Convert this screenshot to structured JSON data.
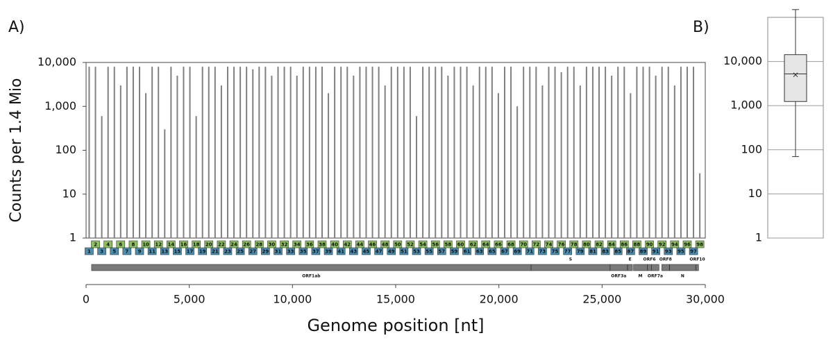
{
  "chart_data": [
    {
      "type": "coverage",
      "title": "A)",
      "x_label": "Genome position [nt]",
      "y_label": "Counts per 1.4 Mio",
      "log_scale": true,
      "xlim": [
        0,
        30000
      ],
      "ylim": [
        1,
        10000
      ],
      "xticks": [
        0,
        {
          "value": 5000,
          "label": "5,000"
        },
        {
          "value": 10000,
          "label": "10,000"
        },
        {
          "value": 15000,
          "label": "15,000"
        },
        {
          "value": 20000,
          "label": "20,000"
        },
        {
          "value": 25000,
          "label": "25,000"
        },
        {
          "value": 30000,
          "label": "30,000"
        }
      ],
      "yticks": [
        1,
        10,
        100,
        {
          "value": 1000,
          "label": "1,000"
        },
        {
          "value": 10000,
          "label": "10,000"
        }
      ],
      "color": "#808080",
      "odd_color": "#4a8fb0",
      "even_color": "#8dc063",
      "amplicons": [
        1,
        2,
        3,
        4,
        5,
        6,
        7,
        8,
        9,
        10,
        11,
        12,
        13,
        14,
        15,
        16,
        17,
        18,
        19,
        20,
        21,
        22,
        23,
        24,
        25,
        26,
        27,
        28,
        29,
        30,
        31,
        32,
        33,
        34,
        35,
        36,
        37,
        38,
        39,
        40,
        41,
        42,
        43,
        44,
        45,
        46,
        47,
        48,
        49,
        50,
        51,
        52,
        53,
        54,
        55,
        56,
        57,
        58,
        59,
        60,
        61,
        62,
        63,
        64,
        65,
        66,
        67,
        68,
        69,
        70,
        71,
        72,
        73,
        74,
        75,
        76,
        77,
        78,
        79,
        80,
        81,
        82,
        83,
        84,
        85,
        86,
        87,
        88,
        89,
        90,
        91,
        92,
        93,
        94,
        95,
        96,
        97,
        98
      ],
      "x": [
        150,
        455,
        760,
        1065,
        1370,
        1675,
        1980,
        2285,
        2590,
        2895,
        3200,
        3505,
        3810,
        4115,
        4420,
        4725,
        5030,
        5335,
        5640,
        5945,
        6250,
        6555,
        6860,
        7165,
        7470,
        7775,
        8080,
        8385,
        8690,
        8995,
        9300,
        9605,
        9910,
        10215,
        10520,
        10825,
        11130,
        11435,
        11740,
        12045,
        12350,
        12655,
        12960,
        13265,
        13570,
        13875,
        14180,
        14485,
        14790,
        15095,
        15400,
        15705,
        16010,
        16315,
        16620,
        16925,
        17230,
        17535,
        17840,
        18145,
        18450,
        18755,
        19060,
        19365,
        19670,
        19975,
        20280,
        20585,
        20890,
        21195,
        21500,
        21805,
        22110,
        22415,
        22720,
        23025,
        23330,
        23635,
        23940,
        24245,
        24550,
        24855,
        25160,
        25465,
        25770,
        26075,
        26380,
        26685,
        26990,
        27295,
        27600,
        27905,
        28210,
        28515,
        28820,
        29125,
        29430,
        29735
      ],
      "values": [
        8000,
        8000,
        600,
        8000,
        8000,
        3000,
        8000,
        8000,
        8000,
        2000,
        8000,
        8000,
        300,
        8000,
        5000,
        8000,
        8000,
        600,
        8000,
        8000,
        8000,
        3000,
        8000,
        8000,
        8000,
        8000,
        7000,
        8000,
        8000,
        5000,
        8000,
        8000,
        8000,
        5000,
        8000,
        8000,
        8000,
        8000,
        2000,
        8000,
        8000,
        8000,
        5000,
        8000,
        8000,
        8000,
        8000,
        3000,
        8000,
        8000,
        8000,
        8000,
        600,
        8000,
        8000,
        8000,
        8000,
        5000,
        8000,
        8000,
        8000,
        3000,
        8000,
        8000,
        8000,
        2000,
        8000,
        8000,
        1000,
        8000,
        8000,
        8000,
        3000,
        8000,
        8000,
        6000,
        8000,
        8000,
        3000,
        8000,
        8000,
        8000,
        8000,
        5000,
        8000,
        8000,
        2000,
        8000,
        8000,
        8000,
        5000,
        8000,
        8000,
        3000,
        8000,
        8000,
        8000,
        30
      ],
      "genes": [
        {
          "name": "ORF1ab",
          "start": 266,
          "end": 21555
        },
        {
          "name": "S",
          "start": 21563,
          "end": 25384
        },
        {
          "name": "ORF3a",
          "start": 25393,
          "end": 26220
        },
        {
          "name": "E",
          "start": 26245,
          "end": 26472
        },
        {
          "name": "M",
          "start": 26523,
          "end": 27191
        },
        {
          "name": "ORF6",
          "start": 27202,
          "end": 27387
        },
        {
          "name": "ORF7a",
          "start": 27394,
          "end": 27759
        },
        {
          "name": "ORF8",
          "start": 27894,
          "end": 28259
        },
        {
          "name": "N",
          "start": 28274,
          "end": 29533
        },
        {
          "name": "ORF10",
          "start": 29558,
          "end": 29674
        }
      ]
    },
    {
      "type": "box",
      "title": "B)",
      "log_scale": true,
      "ylim": [
        1,
        100000
      ],
      "yticks": [
        1,
        10,
        100,
        {
          "value": 1000,
          "label": "1,000"
        },
        {
          "value": 10000,
          "label": "10,000"
        }
      ],
      "grid": true,
      "min": 70,
      "q1": 1240,
      "median": 5230,
      "q3": 14300,
      "max": 150000,
      "mean": 5000,
      "color": "#e6e6e6"
    }
  ]
}
